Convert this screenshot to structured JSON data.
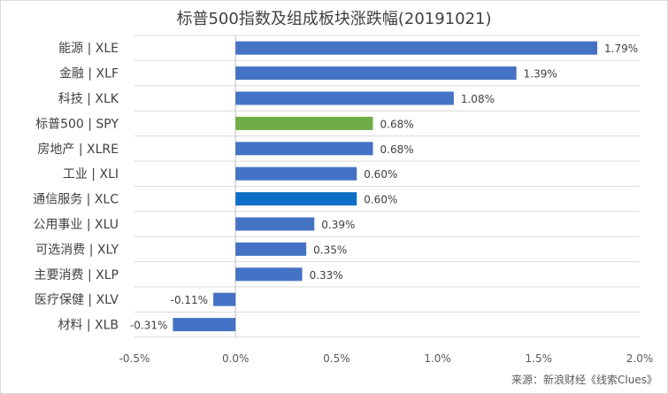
{
  "chart_data": {
    "type": "bar",
    "orientation": "horizontal",
    "title": "标普500指数及组成板块涨跌幅(20191021)",
    "categories": [
      "能源 | XLE",
      "金融 | XLF",
      "科技 | XLK",
      "标普500 | SPY",
      "房地产 | XLRE",
      "工业 | XLI",
      "通信服务 | XLC",
      "公用事业 | XLU",
      "可选消费 | XLY",
      "主要消费 | XLP",
      "医疗保健 | XLV",
      "材料 | XLB"
    ],
    "values": [
      1.79,
      1.39,
      1.08,
      0.68,
      0.68,
      0.6,
      0.6,
      0.39,
      0.35,
      0.33,
      -0.11,
      -0.31
    ],
    "value_labels": [
      "1.79%",
      "1.39%",
      "1.08%",
      "0.68%",
      "0.68%",
      "0.60%",
      "0.60%",
      "0.39%",
      "0.35%",
      "0.33%",
      "-0.11%",
      "-0.31%"
    ],
    "bar_colors": [
      "#4472c4",
      "#4472c4",
      "#4472c4",
      "#70ad47",
      "#4472c4",
      "#4472c4",
      "#0f6fc6",
      "#4472c4",
      "#4472c4",
      "#4472c4",
      "#4472c4",
      "#4472c4"
    ],
    "xlim": [
      -0.5,
      2.0
    ],
    "xticks": [
      -0.5,
      0.0,
      0.5,
      1.0,
      1.5,
      2.0
    ],
    "xtick_labels": [
      "-0.5%",
      "0.0%",
      "0.5%",
      "1.0%",
      "1.5%",
      "2.0%"
    ],
    "xlabel": "",
    "ylabel": "",
    "grid": "horizontal",
    "legend": "none"
  },
  "source_note": "来源：新浪财经《线索Clues》",
  "colors": {
    "grid": "#d9d9d9",
    "axis": "#bfbfbf"
  }
}
